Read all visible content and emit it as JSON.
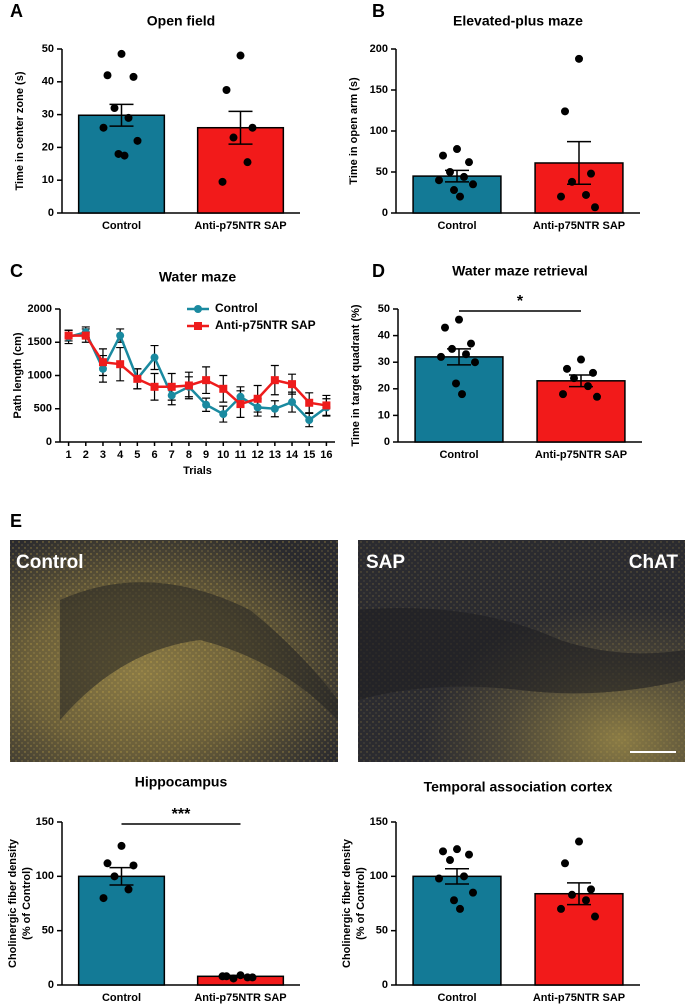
{
  "chart_data": [
    {
      "type": "bar",
      "panel": "A",
      "title": "Open field",
      "ylabel": [
        "Time in center zone (s)"
      ],
      "categories": [
        "Control",
        "Anti-p75NTR SAP"
      ],
      "colors": [
        "#137a96",
        "#f21a1a"
      ],
      "values": [
        29.8,
        26
      ],
      "errors": [
        3.3,
        5
      ],
      "points": [
        [
          48.5,
          42,
          41.5,
          32,
          29,
          26,
          22,
          18,
          17.5
        ],
        [
          48,
          37.5,
          26,
          23,
          15.5,
          9.5
        ]
      ],
      "ylim": [
        0,
        50
      ],
      "yticks": [
        0,
        10,
        20,
        30,
        40,
        50
      ]
    },
    {
      "type": "bar",
      "panel": "B",
      "title": "Elevated-plus maze",
      "ylabel": [
        "Time in open arm (s)"
      ],
      "categories": [
        "Control",
        "Anti-p75NTR SAP"
      ],
      "colors": [
        "#137a96",
        "#f21a1a"
      ],
      "values": [
        45,
        61
      ],
      "errors": [
        7,
        26
      ],
      "points": [
        [
          78,
          70,
          62,
          50,
          44,
          40,
          35,
          28,
          20
        ],
        [
          188,
          124,
          48,
          38,
          22,
          20,
          7
        ]
      ],
      "ylim": [
        0,
        200
      ],
      "yticks": [
        0,
        50,
        100,
        150,
        200
      ]
    },
    {
      "type": "line",
      "panel": "C",
      "title": "Water maze",
      "ylabel": [
        "Path length (cm)"
      ],
      "xlabel": "Trials",
      "x": [
        1,
        2,
        3,
        4,
        5,
        6,
        7,
        8,
        9,
        10,
        11,
        12,
        13,
        14,
        15,
        16
      ],
      "series": [
        {
          "name": "Control",
          "color": "#1a8aa0",
          "marker": "circle",
          "values": [
            1580,
            1650,
            1100,
            1600,
            950,
            1270,
            700,
            830,
            560,
            420,
            680,
            520,
            500,
            600,
            330,
            520
          ],
          "errors": [
            100,
            80,
            200,
            100,
            150,
            180,
            140,
            150,
            100,
            120,
            150,
            130,
            120,
            150,
            100,
            130
          ]
        },
        {
          "name": "Anti-p75NTR SAP",
          "color": "#ee1c1c",
          "marker": "square",
          "values": [
            1600,
            1600,
            1200,
            1170,
            950,
            830,
            830,
            850,
            930,
            800,
            570,
            650,
            930,
            870,
            590,
            550
          ],
          "errors": [
            80,
            100,
            200,
            250,
            150,
            200,
            200,
            200,
            200,
            200,
            200,
            200,
            220,
            150,
            150,
            150
          ]
        }
      ],
      "xlim": [
        0.5,
        16.5
      ],
      "xticks": [
        1,
        2,
        3,
        4,
        5,
        6,
        7,
        8,
        9,
        10,
        11,
        12,
        13,
        14,
        15,
        16
      ],
      "ylim": [
        0,
        2000
      ],
      "yticks": [
        0,
        500,
        1000,
        1500,
        2000
      ]
    },
    {
      "type": "bar",
      "panel": "D",
      "title": "Water maze retrieval",
      "ylabel": [
        "Time in target quadrant (%)"
      ],
      "categories": [
        "Control",
        "Anti-p75NTR SAP"
      ],
      "colors": [
        "#137a96",
        "#f21a1a"
      ],
      "values": [
        32,
        23
      ],
      "errors": [
        3,
        2.2
      ],
      "points": [
        [
          46,
          43,
          37,
          35,
          33,
          32,
          30,
          22,
          18
        ],
        [
          31,
          27.5,
          26,
          24,
          21,
          18,
          17
        ]
      ],
      "annotation": "*",
      "ylim": [
        0,
        50
      ],
      "yticks": [
        0,
        10,
        20,
        30,
        40,
        50
      ]
    },
    {
      "type": "bar",
      "title": "Hippocampus",
      "ylabel": [
        "Cholinergic fiber density",
        "(% of Control)"
      ],
      "categories": [
        "Control",
        "Anti-p75NTR SAP"
      ],
      "colors": [
        "#137a96",
        "#f21a1a"
      ],
      "values": [
        100,
        8
      ],
      "errors": [
        8,
        0.8
      ],
      "points": [
        [
          128,
          112,
          110,
          100,
          88,
          80
        ],
        [
          9,
          8,
          7,
          6,
          7,
          8
        ]
      ],
      "annotation": "***",
      "ylim": [
        0,
        150
      ],
      "yticks": [
        0,
        50,
        100,
        150
      ]
    },
    {
      "type": "bar",
      "title": "Temporal association cortex",
      "ylabel": [
        "Cholinergic fiber density",
        "(% of Control)"
      ],
      "categories": [
        "Control",
        "Anti-p75NTR SAP"
      ],
      "colors": [
        "#137a96",
        "#f21a1a"
      ],
      "values": [
        100,
        84
      ],
      "errors": [
        7,
        10
      ],
      "points": [
        [
          125,
          123,
          120,
          115,
          100,
          98,
          85,
          78,
          70
        ],
        [
          132,
          112,
          88,
          83,
          78,
          70,
          63
        ]
      ],
      "ylim": [
        0,
        150
      ],
      "yticks": [
        0,
        50,
        100,
        150
      ]
    }
  ],
  "panel_e": {
    "label": "E",
    "images": [
      {
        "labels": [
          "Control"
        ]
      },
      {
        "labels": [
          "SAP",
          "ChAT"
        ]
      }
    ]
  }
}
